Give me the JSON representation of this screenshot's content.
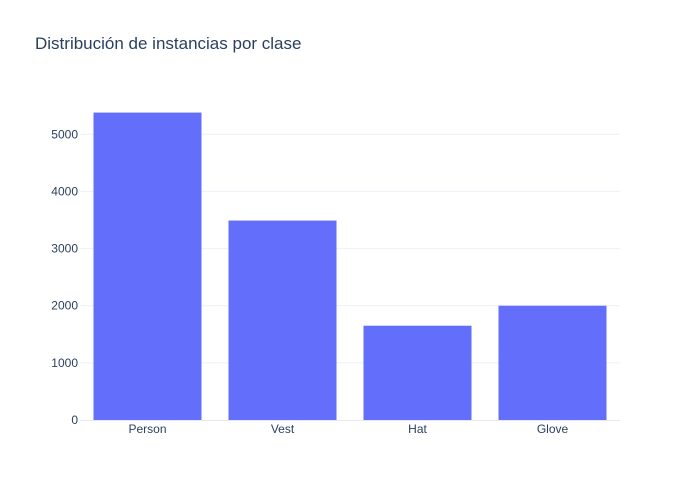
{
  "chart_data": {
    "type": "bar",
    "title": "Distribución de instancias por clase",
    "xlabel": "",
    "ylabel": "",
    "categories": [
      "Person",
      "Vest",
      "Hat",
      "Glove"
    ],
    "values": [
      5380,
      3490,
      1650,
      2000
    ],
    "ylim": [
      0,
      5600
    ],
    "yticks": [
      0,
      1000,
      2000,
      3000,
      4000,
      5000
    ],
    "grid": true,
    "legend": "none",
    "colors": {
      "bar": "#636efa",
      "grid": "#ebf0f8",
      "axis_line": "#e6e9ef",
      "text": "#2a3f5f",
      "background": "#ffffff"
    }
  }
}
